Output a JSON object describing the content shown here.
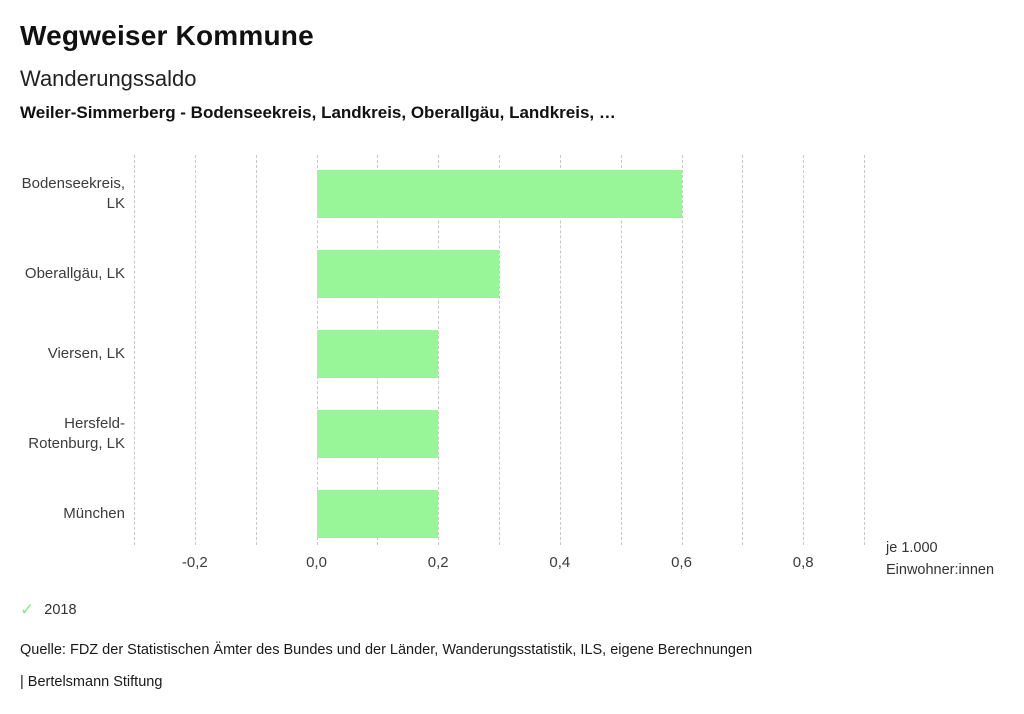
{
  "header": {
    "title": "Wegweiser Kommune",
    "subtitle": "Wanderungssaldo",
    "selection": "Weiler-Simmerberg - Bodenseekreis, Landkreis, Oberallgäu, Landkreis, …"
  },
  "chart_data": {
    "type": "bar",
    "orientation": "horizontal",
    "title": "Wanderungssaldo",
    "categories": [
      "Bodenseekreis, LK",
      "Oberallgäu, LK",
      "Viersen, LK",
      "Hersfeld-Rotenburg, LK",
      "München"
    ],
    "category_label_lines": [
      [
        "Bodenseekreis,",
        "LK"
      ],
      [
        "Oberallgäu, LK"
      ],
      [
        "Viersen, LK"
      ],
      [
        "Hersfeld-",
        "Rotenburg, LK"
      ],
      [
        "München"
      ]
    ],
    "values": [
      0.6,
      0.3,
      0.2,
      0.2,
      0.2
    ],
    "series_name": "2018",
    "xlim": [
      -0.3,
      0.9
    ],
    "grid_step": 0.1,
    "grid": "dashed-vertical",
    "x_ticks": [
      {
        "value": -0.2,
        "label": "-0,2"
      },
      {
        "value": 0.0,
        "label": "0,0"
      },
      {
        "value": 0.2,
        "label": "0,2"
      },
      {
        "value": 0.4,
        "label": "0,4"
      },
      {
        "value": 0.6,
        "label": "0,6"
      },
      {
        "value": 0.8,
        "label": "0,8"
      }
    ],
    "xlabel_lines": [
      "je 1.000",
      "Einwohner:innen"
    ],
    "bar_color": "#98f598",
    "grid_color": "#c7c7c7"
  },
  "legend": {
    "year": "2018",
    "check_icon": "✓",
    "check_color": "#8be88b",
    "position": "bottom-left"
  },
  "footer": {
    "source": "Quelle: FDZ der Statistischen Ämter des Bundes und der Länder, Wanderungsstatistik, ILS, eigene Berechnungen",
    "attribution": "| Bertelsmann Stiftung"
  }
}
